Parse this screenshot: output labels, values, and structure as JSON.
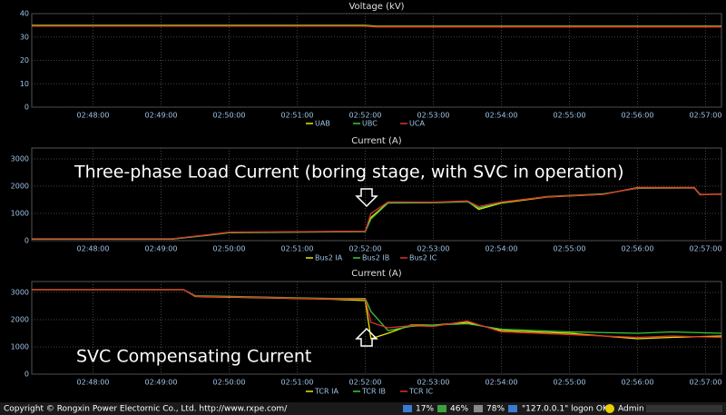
{
  "chart_data": [
    {
      "type": "line",
      "title": "Voltage (kV)",
      "x": [
        "02:47:06",
        "02:52:00",
        "02:52:10",
        "02:57:14"
      ],
      "xlim": [
        "02:47:06",
        "02:57:14"
      ],
      "xticks": [
        "02:48:00",
        "02:49:00",
        "02:50:00",
        "02:51:00",
        "02:52:00",
        "02:53:00",
        "02:54:00",
        "02:55:00",
        "02:56:00",
        "02:57:00"
      ],
      "ylim": [
        0,
        40
      ],
      "yticks": [
        0,
        10,
        20,
        30,
        40
      ],
      "grid": true,
      "series": [
        {
          "name": "UAB",
          "color": "#e8e800",
          "values": [
            35,
            35,
            34.6,
            34.6
          ]
        },
        {
          "name": "UBC",
          "color": "#3cc83c",
          "values": [
            34.8,
            34.8,
            34.4,
            34.4
          ]
        },
        {
          "name": "UCA",
          "color": "#e03030",
          "values": [
            34.6,
            34.6,
            34.3,
            34.3
          ]
        }
      ]
    },
    {
      "type": "line",
      "title": "Current (A)",
      "annotation": "Three-phase Load Current (boring stage, with SVC in operation)",
      "x": [
        "02:47:06",
        "02:49:10",
        "02:49:40",
        "02:50:00",
        "02:51:00",
        "02:52:00",
        "02:52:05",
        "02:52:20",
        "02:53:00",
        "02:53:30",
        "02:53:40",
        "02:54:00",
        "02:54:40",
        "02:55:30",
        "02:56:00",
        "02:56:50",
        "02:56:55",
        "02:57:14"
      ],
      "xlim": [
        "02:47:06",
        "02:57:14"
      ],
      "xticks": [
        "02:48:00",
        "02:49:00",
        "02:50:00",
        "02:51:00",
        "02:52:00",
        "02:53:00",
        "02:54:00",
        "02:55:00",
        "02:56:00",
        "02:57:00"
      ],
      "ylim": [
        0,
        3400
      ],
      "yticks": [
        0,
        1000,
        2000,
        3000
      ],
      "grid": true,
      "series": [
        {
          "name": "Bus2 IA",
          "color": "#e8e800",
          "values": [
            60,
            60,
            200,
            300,
            320,
            340,
            850,
            1400,
            1400,
            1450,
            1150,
            1380,
            1600,
            1700,
            1950,
            1950,
            1700,
            1700
          ]
        },
        {
          "name": "Bus2 IB",
          "color": "#3cc83c",
          "values": [
            60,
            60,
            190,
            290,
            310,
            330,
            800,
            1380,
            1390,
            1430,
            1200,
            1400,
            1620,
            1720,
            1920,
            1930,
            1680,
            1720
          ]
        },
        {
          "name": "Bus2 IC",
          "color": "#e03030",
          "values": [
            70,
            70,
            210,
            310,
            330,
            350,
            1000,
            1420,
            1410,
            1460,
            1250,
            1420,
            1610,
            1700,
            1940,
            1940,
            1690,
            1710
          ]
        }
      ]
    },
    {
      "type": "line",
      "title": "Current (A)",
      "annotation": "SVC Compensating Current",
      "x": [
        "02:47:06",
        "02:49:20",
        "02:49:30",
        "02:50:30",
        "02:51:30",
        "02:52:00",
        "02:52:05",
        "02:52:20",
        "02:52:40",
        "02:53:00",
        "02:53:30",
        "02:54:00",
        "02:55:00",
        "02:56:00",
        "02:56:30",
        "02:57:14"
      ],
      "xlim": [
        "02:47:06",
        "02:57:14"
      ],
      "xticks": [
        "02:48:00",
        "02:49:00",
        "02:50:00",
        "02:51:00",
        "02:52:00",
        "02:53:00",
        "02:54:00",
        "02:55:00",
        "02:56:00",
        "02:57:00"
      ],
      "ylim": [
        0,
        3400
      ],
      "yticks": [
        0,
        1000,
        2000,
        3000
      ],
      "grid": true,
      "series": [
        {
          "name": "TCR IA",
          "color": "#e8e800",
          "values": [
            3100,
            3100,
            2850,
            2800,
            2750,
            2700,
            1300,
            1500,
            1800,
            1800,
            1900,
            1600,
            1500,
            1300,
            1350,
            1400
          ]
        },
        {
          "name": "TCR IB",
          "color": "#3cc83c",
          "values": [
            3100,
            3100,
            2880,
            2830,
            2780,
            2780,
            2300,
            1600,
            1750,
            1800,
            1850,
            1650,
            1550,
            1500,
            1550,
            1500
          ]
        },
        {
          "name": "TCR IC",
          "color": "#e03030",
          "values": [
            3100,
            3100,
            2860,
            2810,
            2760,
            2750,
            1900,
            1700,
            1780,
            1750,
            1950,
            1550,
            1450,
            1350,
            1400,
            1350
          ]
        }
      ]
    }
  ],
  "status_bar": {
    "copyright": "Copyright © Rongxin Power Electornic Co., Ltd. http://www.rxpe.com/",
    "cpu": "17%",
    "memory": "46%",
    "disk": "78%",
    "logon": "\"127.0.0.1\" logon OK",
    "user": "Admin"
  }
}
